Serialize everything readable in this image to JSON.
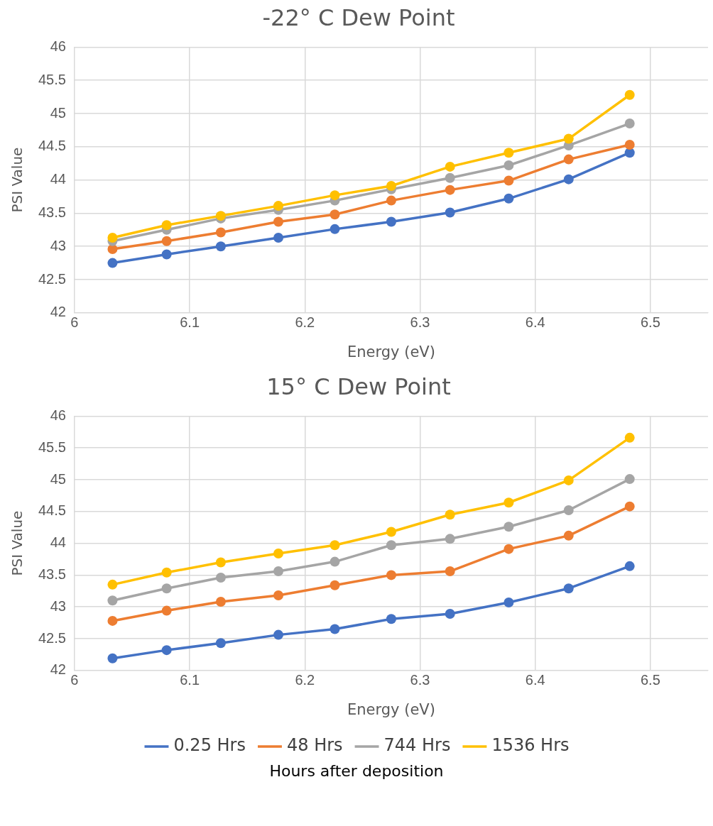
{
  "chart_data": [
    {
      "type": "line",
      "title": "-22° C Dew Point",
      "xlabel": "Energy (eV)",
      "ylabel": "PSI Value",
      "x": [
        6.033,
        6.08,
        6.127,
        6.177,
        6.226,
        6.275,
        6.326,
        6.377,
        6.429,
        6.482
      ],
      "series": [
        {
          "color": "#4472c4",
          "values": [
            42.75,
            42.88,
            43.0,
            43.13,
            43.26,
            43.37,
            43.51,
            43.72,
            44.01,
            44.41
          ]
        },
        {
          "color": "#ed7d31",
          "values": [
            42.96,
            43.08,
            43.21,
            43.37,
            43.48,
            43.69,
            43.85,
            43.99,
            44.31,
            44.53
          ]
        },
        {
          "color": "#a5a5a5",
          "values": [
            43.08,
            43.25,
            43.42,
            43.55,
            43.69,
            43.86,
            44.03,
            44.22,
            44.52,
            44.85
          ]
        },
        {
          "color": "#ffc000",
          "values": [
            43.13,
            43.32,
            43.46,
            43.61,
            43.77,
            43.91,
            44.2,
            44.41,
            44.62,
            45.28
          ]
        }
      ],
      "xlim": [
        6,
        6.55
      ],
      "xticks": [
        6,
        6.1,
        6.2,
        6.3,
        6.4,
        6.5
      ],
      "ylim": [
        42,
        46
      ],
      "yticks": [
        42,
        42.5,
        43,
        43.5,
        44,
        44.5,
        45,
        45.5,
        46
      ],
      "grid": true,
      "legend": false,
      "marker": "circle",
      "line_style": "solid"
    },
    {
      "type": "line",
      "title": "15° C Dew Point",
      "xlabel": "Energy (eV)",
      "ylabel": "PSI Value",
      "legend_title": "Hours after deposition",
      "x": [
        6.033,
        6.08,
        6.127,
        6.177,
        6.226,
        6.275,
        6.326,
        6.377,
        6.429,
        6.482
      ],
      "series": [
        {
          "name": "0.25 Hrs",
          "color": "#4472c4",
          "values": [
            42.19,
            42.32,
            42.43,
            42.56,
            42.65,
            42.81,
            42.89,
            43.07,
            43.29,
            43.64
          ]
        },
        {
          "name": "48 Hrs",
          "color": "#ed7d31",
          "values": [
            42.78,
            42.94,
            43.08,
            43.18,
            43.34,
            43.5,
            43.56,
            43.91,
            44.12,
            44.58
          ]
        },
        {
          "name": "744 Hrs",
          "color": "#a5a5a5",
          "values": [
            43.1,
            43.29,
            43.46,
            43.56,
            43.71,
            43.97,
            44.07,
            44.26,
            44.52,
            45.01
          ]
        },
        {
          "name": "1536 Hrs",
          "color": "#ffc000",
          "values": [
            43.35,
            43.54,
            43.7,
            43.84,
            43.97,
            44.18,
            44.45,
            44.64,
            44.99,
            45.66
          ]
        }
      ],
      "xlim": [
        6,
        6.55
      ],
      "xticks": [
        6,
        6.1,
        6.2,
        6.3,
        6.4,
        6.5
      ],
      "ylim": [
        42,
        46
      ],
      "yticks": [
        42,
        42.5,
        43,
        43.5,
        44,
        44.5,
        45,
        45.5,
        46
      ],
      "grid": true,
      "legend": "bottom",
      "marker": "circle",
      "line_style": "solid"
    }
  ]
}
